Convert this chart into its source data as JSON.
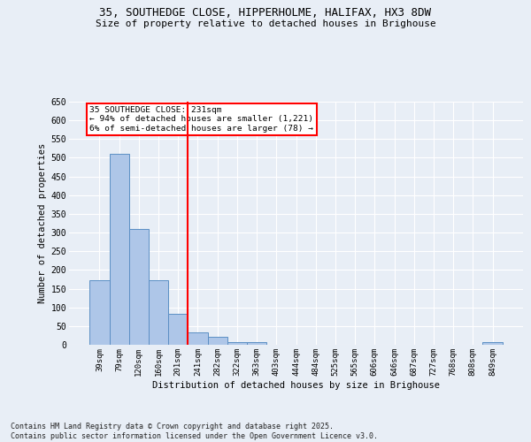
{
  "title_line1": "35, SOUTHEDGE CLOSE, HIPPERHOLME, HALIFAX, HX3 8DW",
  "title_line2": "Size of property relative to detached houses in Brighouse",
  "xlabel": "Distribution of detached houses by size in Brighouse",
  "ylabel": "Number of detached properties",
  "categories": [
    "39sqm",
    "79sqm",
    "120sqm",
    "160sqm",
    "201sqm",
    "241sqm",
    "282sqm",
    "322sqm",
    "363sqm",
    "403sqm",
    "444sqm",
    "484sqm",
    "525sqm",
    "565sqm",
    "606sqm",
    "646sqm",
    "687sqm",
    "727sqm",
    "768sqm",
    "808sqm",
    "849sqm"
  ],
  "values": [
    172,
    511,
    309,
    172,
    82,
    34,
    21,
    8,
    8,
    0,
    0,
    0,
    0,
    0,
    0,
    0,
    0,
    0,
    0,
    0,
    6
  ],
  "bar_color": "#aec6e8",
  "bar_edge_color": "#5b8fc4",
  "vline_x": 4.5,
  "vline_color": "red",
  "annotation_text": "35 SOUTHEDGE CLOSE: 231sqm\n← 94% of detached houses are smaller (1,221)\n6% of semi-detached houses are larger (78) →",
  "annotation_box_color": "red",
  "annotation_fill": "white",
  "ylim_min": 0,
  "ylim_max": 650,
  "yticks": [
    0,
    50,
    100,
    150,
    200,
    250,
    300,
    350,
    400,
    450,
    500,
    550,
    600,
    650
  ],
  "background_color": "#e8eef6",
  "grid_color": "#ffffff",
  "footer_line1": "Contains HM Land Registry data © Crown copyright and database right 2025.",
  "footer_line2": "Contains public sector information licensed under the Open Government Licence v3.0."
}
